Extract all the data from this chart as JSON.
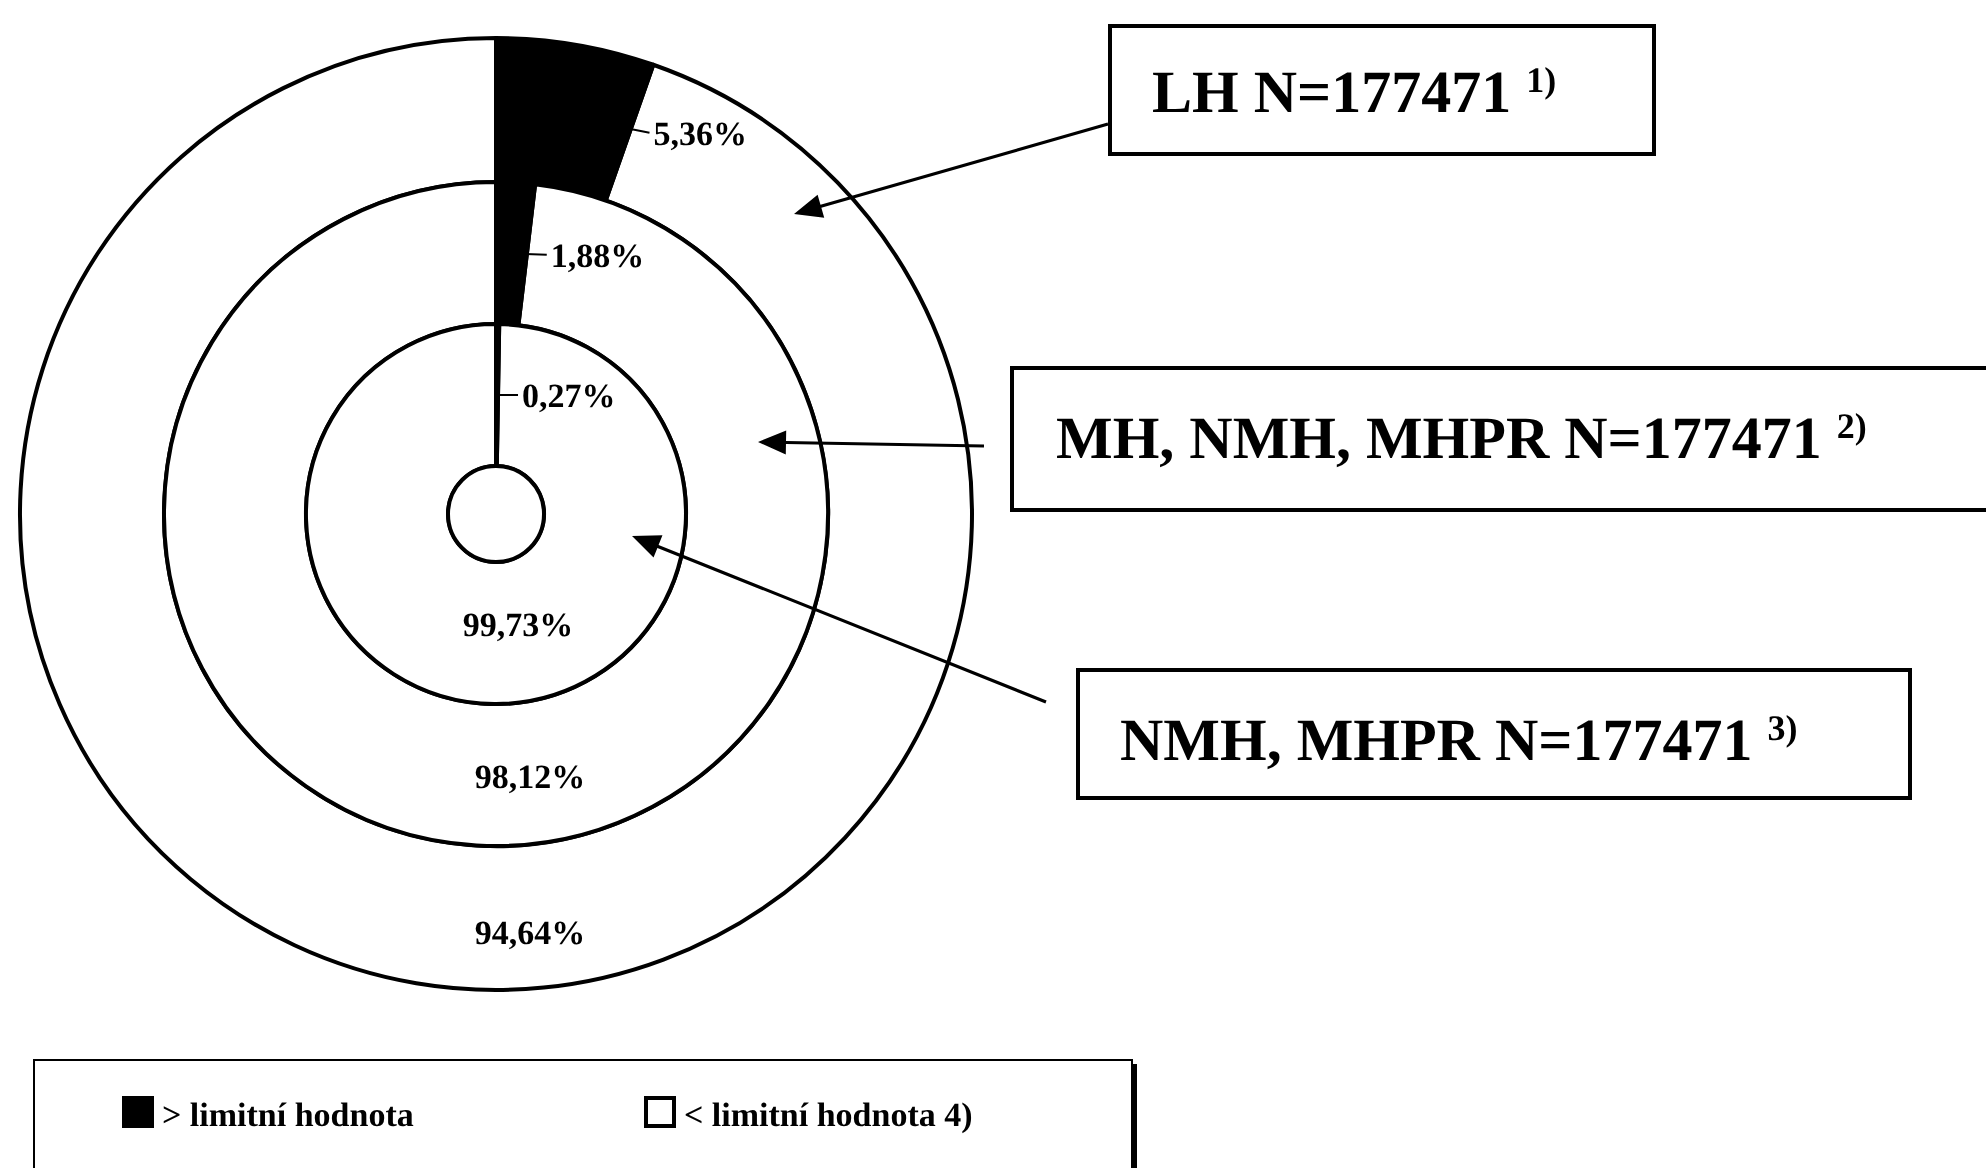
{
  "chart_data": [
    {
      "type": "donut",
      "title": "LH N=177471 $^{1)}$",
      "categories": [
        "> limitní hodnota",
        "< limitní hodnota 4)"
      ],
      "values": [
        5.36,
        94.64
      ],
      "value_labels": [
        "5,36%",
        "94,64%"
      ],
      "colors": [
        "#000000",
        "#ffffff"
      ],
      "legend": "bottom"
    },
    {
      "type": "donut",
      "title": "MH, NMH, MHPR N=177471 $^{2)}$",
      "categories": [
        null,
        null
      ],
      "values": [
        1.88,
        98.12
      ],
      "value_labels": [
        "1,88%",
        "98,12%"
      ],
      "colors": [
        "#000000",
        "#ffffff"
      ]
    },
    {
      "type": "donut",
      "title": "NMH, MHPR N=177471 $^{3)}$",
      "categories": [
        null,
        null
      ],
      "values": [
        0.27,
        99.73
      ],
      "value_labels": [
        "0,27%",
        "99,73%"
      ],
      "colors": [
        "#000000",
        "#ffffff"
      ]
    }
  ]
}
